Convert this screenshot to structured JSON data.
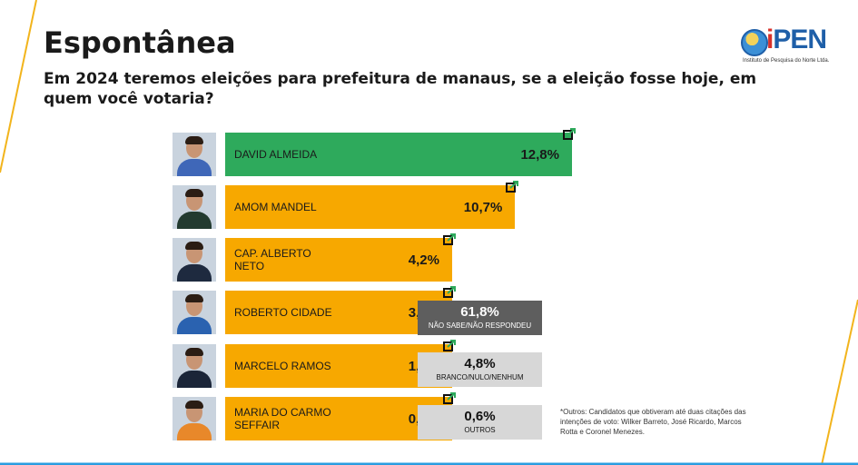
{
  "title": "Espontânea",
  "subtitle": "Em 2024 teremos eleições para prefeitura de manaus, se a eleição fosse hoje, em quem você votaria?",
  "logo": {
    "text_prefix": "i",
    "text": "PEN",
    "tagline": "Instituto de Pesquisa do Norte Ltda."
  },
  "colors": {
    "leader": "#2eaa5c",
    "others": "#f7a800",
    "undecided": "#5e5e5e",
    "blank": "#d7d7d7",
    "arrow": "#2eaa5c"
  },
  "chart_data": {
    "type": "bar",
    "orientation": "horizontal",
    "categories": [
      "DAVID ALMEIDA",
      "AMOM MANDEL",
      "CAP. ALBERTO NETO",
      "ROBERTO CIDADE",
      "MARCELO RAMOS",
      "MARIA DO CARMO SEFFAIR"
    ],
    "values": [
      12.8,
      10.7,
      4.2,
      3.1,
      1.2,
      0.8
    ],
    "value_labels": [
      "12,8%",
      "10,7%",
      "4,2%",
      "3,1%",
      "1,2%",
      "0,8%"
    ],
    "trend_icon": "trend-up-arrow-icon",
    "extra": [
      {
        "label": "NÃO SABE/NÃO RESPONDEU",
        "value": 61.8,
        "value_label": "61,8%"
      },
      {
        "label": "BRANCO/NULO/NENHUM",
        "value": 4.8,
        "value_label": "4,8%"
      },
      {
        "label": "OUTROS",
        "value": 0.6,
        "value_label": "0,6%"
      }
    ]
  },
  "footnote": "*Outros: Candidatos que obtiveram até duas citações das intenções de voto: Wilker Barreto, José Ricardo, Marcos Rotta e Coronel Menezes."
}
